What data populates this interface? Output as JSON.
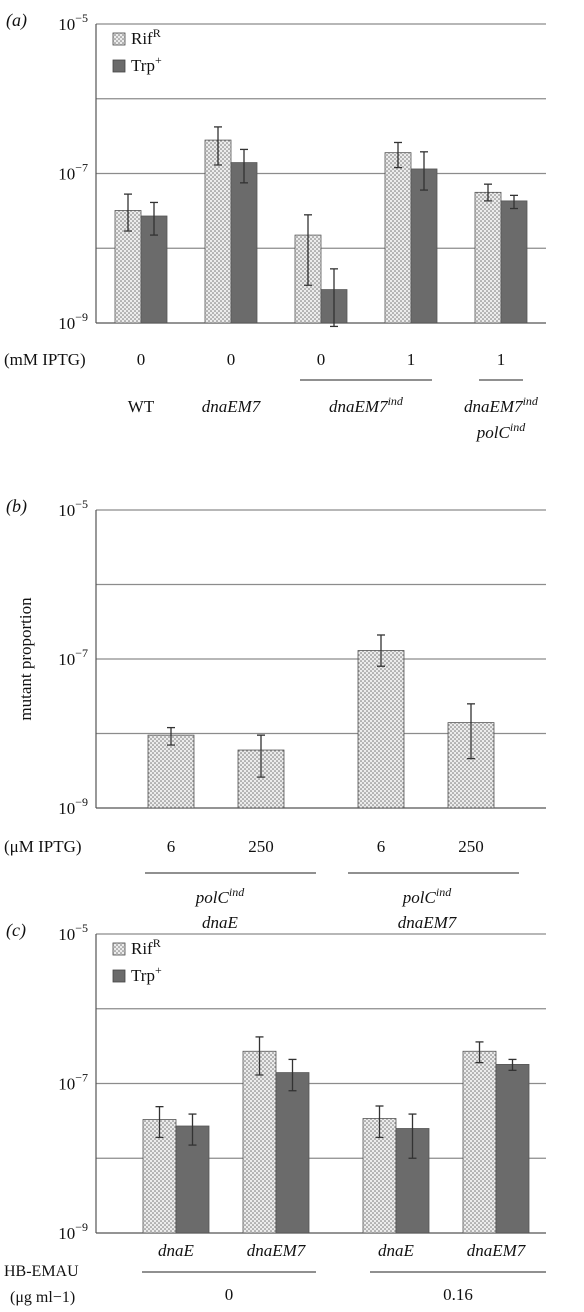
{
  "panels": [
    {
      "id": "a",
      "panel_label": "(a)",
      "legend": [
        {
          "label": "Rif",
          "sup": "R",
          "style": "dotted"
        },
        {
          "label": "Trp",
          "sup": "+",
          "style": "dark"
        }
      ],
      "y_ticks": [
        {
          "base": "10",
          "exp": "−5"
        },
        {
          "base": "10",
          "exp": "−7"
        },
        {
          "base": "10",
          "exp": "−9"
        }
      ],
      "condition_label": "(mM IPTG)",
      "conditions": [
        "0",
        "0",
        "0",
        "1",
        "1"
      ],
      "strains": [
        {
          "parts": [
            {
              "t": "WT",
              "i": false
            }
          ]
        },
        {
          "parts": [
            {
              "t": "dnaEM7",
              "i": true
            }
          ]
        },
        {
          "parts": [
            {
              "t": "dnaEM7",
              "i": true
            },
            {
              "t": "ind",
              "i": true,
              "sup": true
            }
          ]
        },
        {
          "parts": [
            {
              "t": "dnaEM7",
              "i": true
            },
            {
              "t": "ind",
              "i": true,
              "sup": true
            }
          ],
          "line2": [
            {
              "t": "polC",
              "i": true
            },
            {
              "t": "ind",
              "i": true,
              "sup": true
            }
          ]
        }
      ]
    },
    {
      "id": "b",
      "panel_label": "(b)",
      "ylabel": "mutant proportion",
      "y_ticks": [
        {
          "base": "10",
          "exp": "−5"
        },
        {
          "base": "10",
          "exp": "−7"
        },
        {
          "base": "10",
          "exp": "−9"
        }
      ],
      "condition_label": "(μM IPTG)",
      "conditions": [
        "6",
        "250",
        "6",
        "250"
      ],
      "strains": [
        {
          "parts": [
            {
              "t": "polC",
              "i": true
            },
            {
              "t": "ind",
              "i": true,
              "sup": true
            }
          ],
          "line2": [
            {
              "t": "dnaE",
              "i": true
            }
          ]
        },
        {
          "parts": [
            {
              "t": "polC",
              "i": true
            },
            {
              "t": "ind",
              "i": true,
              "sup": true
            }
          ],
          "line2": [
            {
              "t": "dnaEM7",
              "i": true
            }
          ]
        }
      ]
    },
    {
      "id": "c",
      "panel_label": "(c)",
      "legend": [
        {
          "label": "Rif",
          "sup": "R",
          "style": "dotted"
        },
        {
          "label": "Trp",
          "sup": "+",
          "style": "dark"
        }
      ],
      "y_ticks": [
        {
          "base": "10",
          "exp": "−5"
        },
        {
          "base": "10",
          "exp": "−7"
        },
        {
          "base": "10",
          "exp": "−9"
        }
      ],
      "condition_label": "HB-EMAU",
      "condition_unit": "(μg ml−1)",
      "strain_names": [
        "dnaE",
        "dnaEM7",
        "dnaE",
        "dnaEM7"
      ],
      "doses": [
        "0",
        "0.16"
      ]
    }
  ],
  "chart_data": [
    {
      "type": "bar",
      "panel": "a",
      "y_scale": "log",
      "ylim": [
        1e-09,
        1e-05
      ],
      "grid": true,
      "legend_position": "top-left",
      "categories": [
        "WT 0",
        "dnaEM7 0",
        "dnaEM7ind 0",
        "dnaEM7ind 1",
        "dnaEM7ind polCind 1"
      ],
      "series": [
        {
          "name": "RifR",
          "values": [
            3.2e-08,
            2.8e-07,
            1.5e-08,
            1.9e-07,
            5.6e-08
          ],
          "err_low": [
            1.7e-08,
            1.3e-07,
            3.2e-09,
            1.2e-07,
            4.3e-08
          ],
          "err_high": [
            5.3e-08,
            4.2e-07,
            2.8e-08,
            2.6e-07,
            7.2e-08
          ]
        },
        {
          "name": "Trp+",
          "values": [
            2.7e-08,
            1.4e-07,
            2.8e-09,
            1.15e-07,
            4.3e-08
          ],
          "err_low": [
            1.5e-08,
            7.5e-08,
            9e-10,
            6e-08,
            3.4e-08
          ],
          "err_high": [
            4.1e-08,
            2.1e-07,
            5.3e-09,
            1.95e-07,
            5.1e-08
          ]
        }
      ]
    },
    {
      "type": "bar",
      "panel": "b",
      "y_scale": "log",
      "ylim": [
        1e-09,
        1e-05
      ],
      "grid": true,
      "ylabel": "mutant proportion",
      "categories": [
        "polCind dnaE 6",
        "polCind dnaE 250",
        "polCind dnaEM7 6",
        "polCind dnaEM7 250"
      ],
      "series": [
        {
          "name": "",
          "values": [
            9.5e-09,
            6e-09,
            1.3e-07,
            1.4e-08
          ],
          "err_low": [
            7e-09,
            2.6e-09,
            8e-08,
            4.6e-09
          ],
          "err_high": [
            1.2e-08,
            9.5e-09,
            2.1e-07,
            2.5e-08
          ]
        }
      ]
    },
    {
      "type": "bar",
      "panel": "c",
      "y_scale": "log",
      "ylim": [
        1e-09,
        1e-05
      ],
      "grid": true,
      "legend_position": "top-left",
      "categories": [
        "dnaE 0",
        "dnaEM7 0",
        "dnaE 0.16",
        "dnaEM7 0.16"
      ],
      "series": [
        {
          "name": "RifR",
          "values": [
            3.3e-08,
            2.7e-07,
            3.4e-08,
            2.7e-07
          ],
          "err_low": [
            1.9e-08,
            1.3e-07,
            1.9e-08,
            1.9e-07
          ],
          "err_high": [
            4.9e-08,
            4.2e-07,
            5e-08,
            3.6e-07
          ]
        },
        {
          "name": "Trp+",
          "values": [
            2.7e-08,
            1.4e-07,
            2.5e-08,
            1.8e-07
          ],
          "err_low": [
            1.5e-08,
            8e-08,
            1e-08,
            1.5e-07
          ],
          "err_high": [
            3.9e-08,
            2.1e-07,
            3.9e-08,
            2.1e-07
          ]
        }
      ]
    }
  ],
  "colors": {
    "dotted_fill": "#e9e9e9",
    "dark_fill": "#6b6b6b",
    "grid": "#8c8c8c",
    "axis": "#555555",
    "error_bar": "#333333"
  },
  "icons": {
    "dotted": "dotted-swatch-icon",
    "dark": "dark-swatch-icon"
  }
}
